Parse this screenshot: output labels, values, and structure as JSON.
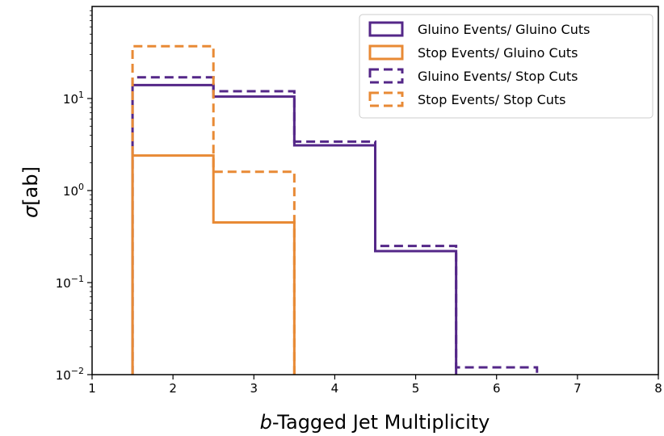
{
  "chart_data": {
    "type": "histogram-step",
    "xlabel_prefix": "b",
    "xlabel_rest": "-Tagged Jet Multiplicity",
    "ylabel_symbol": "σ",
    "ylabel_unit": "[ab]",
    "xlim": [
      1,
      8
    ],
    "ylim": [
      0.01,
      100
    ],
    "yscale": "log",
    "xticks": [
      1,
      2,
      3,
      4,
      5,
      6,
      7,
      8
    ],
    "yticks": [
      {
        "value": 0.01,
        "base": "10",
        "exp": "−2"
      },
      {
        "value": 0.1,
        "base": "10",
        "exp": "−1"
      },
      {
        "value": 1,
        "base": "10",
        "exp": "0"
      },
      {
        "value": 10,
        "base": "10",
        "exp": "1"
      }
    ],
    "bin_edges": [
      1.5,
      2.5,
      3.5,
      4.5,
      5.5,
      6.5
    ],
    "legend_position": "top-right",
    "series": [
      {
        "name": "Gluino Events/ Gluino Cuts",
        "color": "#542788",
        "style": "solid",
        "values": [
          14,
          10.5,
          3.1,
          0.22,
          null
        ]
      },
      {
        "name": "Stop Events/ Gluino Cuts",
        "color": "#e88a35",
        "style": "solid",
        "values": [
          2.4,
          0.45,
          null,
          null,
          null
        ]
      },
      {
        "name": "Gluino Events/ Stop Cuts",
        "color": "#542788",
        "style": "dashed",
        "values": [
          17,
          12,
          3.4,
          0.25,
          0.012
        ]
      },
      {
        "name": "Stop Events/ Stop Cuts",
        "color": "#e88a35",
        "style": "dashed",
        "values": [
          37,
          1.6,
          null,
          null,
          null
        ]
      }
    ]
  }
}
